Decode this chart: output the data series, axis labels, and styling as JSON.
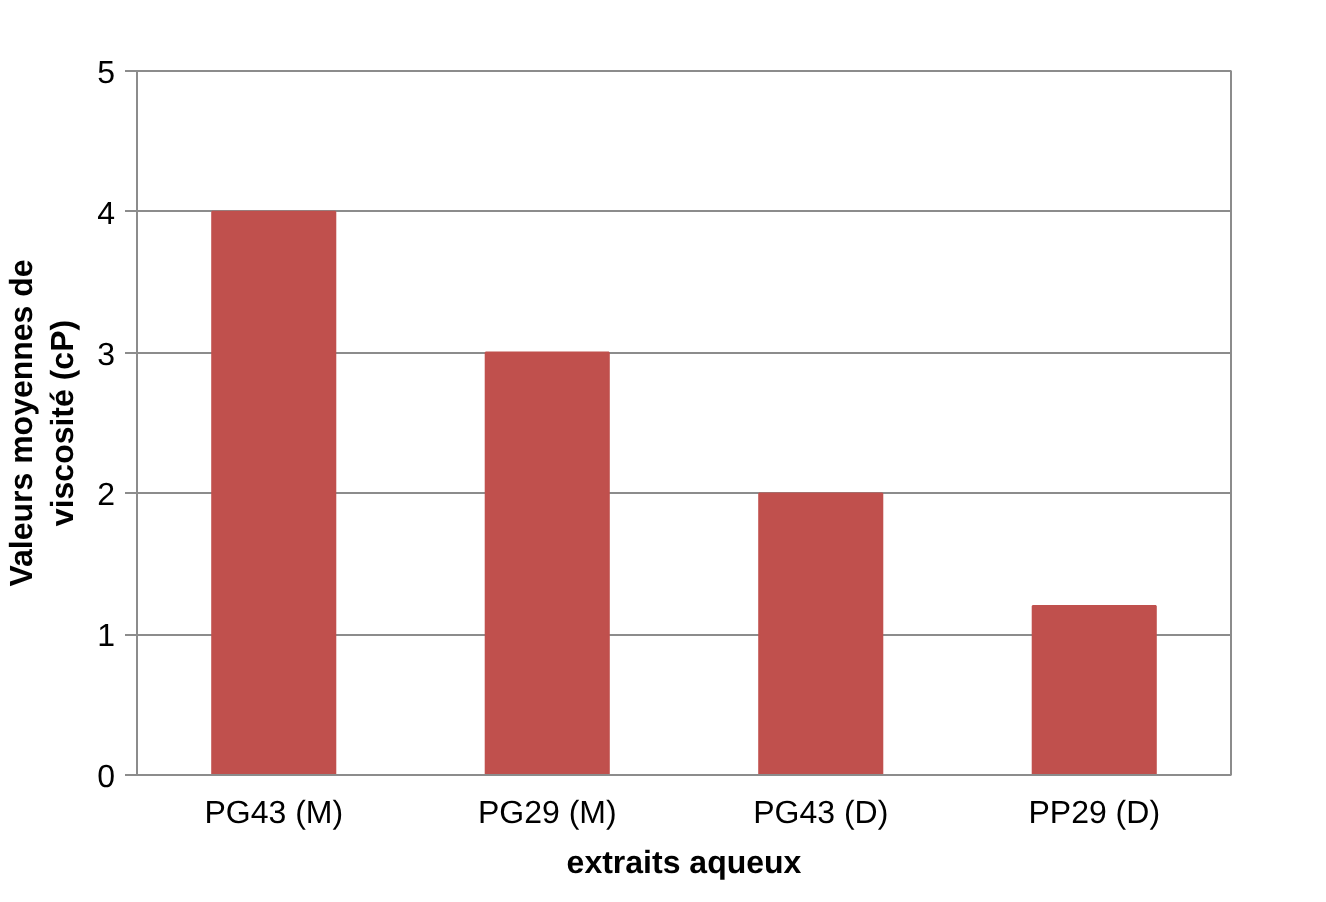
{
  "chart_data": {
    "type": "bar",
    "xlabel": "extraits aqueux",
    "ylabel": "Valeurs moyennes de\nviscosité (cP)",
    "categories": [
      "PG43 (M)",
      "PG29 (M)",
      "PG43 (D)",
      "PP29 (D)"
    ],
    "values": [
      4,
      3,
      2,
      1.2
    ],
    "color": "#c0504d",
    "ylim": [
      0,
      5
    ],
    "yticks": [
      0,
      1,
      2,
      3,
      4,
      5
    ],
    "grid": "y"
  }
}
